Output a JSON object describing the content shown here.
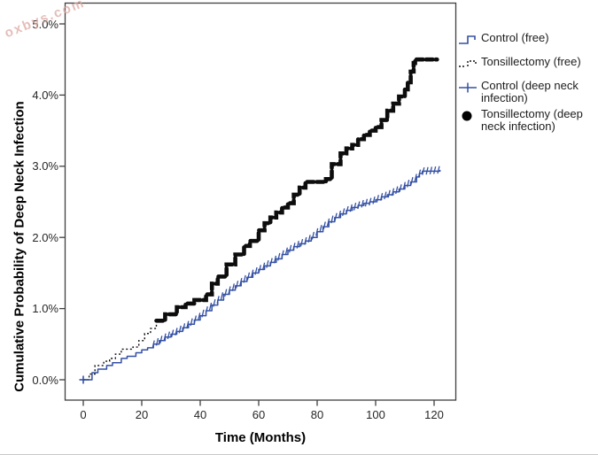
{
  "watermark": {
    "text": "oxbys.com",
    "color": "#dca9a2"
  },
  "legend": {
    "items": [
      {
        "label": "Control (free)",
        "symbol": "blue-step-line"
      },
      {
        "label": "Tonsillectomy (free)",
        "symbol": "black-dotted-line"
      },
      {
        "label": "Control (deep neck infection)",
        "symbol": "blue-plus-line"
      },
      {
        "label": "Tonsillectomy (deep neck infection)",
        "symbol": "black-filled-circle"
      }
    ]
  },
  "chart_data": {
    "type": "line",
    "title": "",
    "xlabel": "Time (Months)",
    "ylabel": "Cumulative Probability of Deep Neck Infection",
    "x_ticks": [
      0,
      20,
      40,
      60,
      80,
      100,
      120
    ],
    "y_tick_values": [
      0,
      1,
      2,
      3,
      4,
      5
    ],
    "y_tick_labels": [
      "0.0%",
      "1.0%",
      "2.0%",
      "3.0%",
      "4.0%",
      "5.0%"
    ],
    "xlim": [
      -6,
      127
    ],
    "ylim": [
      0,
      5.3
    ],
    "grid": false,
    "legend_position": "right",
    "series": [
      {
        "name": "Tonsillectomy",
        "color": "#0d0d0d",
        "line_style": "dotted-then-thick-dashed",
        "style_change_month": 25,
        "points": [
          [
            0,
            0.0
          ],
          [
            2,
            0.08
          ],
          [
            4,
            0.2
          ],
          [
            7,
            0.26
          ],
          [
            9,
            0.3
          ],
          [
            11,
            0.36
          ],
          [
            13,
            0.43
          ],
          [
            17,
            0.46
          ],
          [
            19,
            0.55
          ],
          [
            21,
            0.65
          ],
          [
            23,
            0.72
          ],
          [
            25,
            0.83
          ],
          [
            28,
            0.92
          ],
          [
            32,
            1.02
          ],
          [
            35,
            1.07
          ],
          [
            38,
            1.12
          ],
          [
            42,
            1.2
          ],
          [
            44,
            1.35
          ],
          [
            46,
            1.45
          ],
          [
            49,
            1.62
          ],
          [
            52,
            1.76
          ],
          [
            55,
            1.88
          ],
          [
            57,
            1.95
          ],
          [
            60,
            2.1
          ],
          [
            62,
            2.2
          ],
          [
            64,
            2.28
          ],
          [
            66,
            2.35
          ],
          [
            68,
            2.42
          ],
          [
            70,
            2.48
          ],
          [
            72,
            2.6
          ],
          [
            74,
            2.7
          ],
          [
            76,
            2.78
          ],
          [
            83,
            2.82
          ],
          [
            85,
            3.03
          ],
          [
            88,
            3.18
          ],
          [
            90,
            3.25
          ],
          [
            92,
            3.3
          ],
          [
            94,
            3.38
          ],
          [
            96,
            3.44
          ],
          [
            98,
            3.5
          ],
          [
            100,
            3.55
          ],
          [
            102,
            3.65
          ],
          [
            104,
            3.78
          ],
          [
            106,
            3.88
          ],
          [
            108,
            3.98
          ],
          [
            110,
            4.08
          ],
          [
            111,
            4.18
          ],
          [
            112,
            4.33
          ],
          [
            113,
            4.45
          ],
          [
            113.5,
            4.5
          ],
          [
            121,
            4.5
          ]
        ]
      },
      {
        "name": "Control",
        "color": "#3450a3",
        "line_style": "solid-with-plus-markers",
        "marker_start_month": 24,
        "marker_end_month": 121.5,
        "points": [
          [
            0,
            0.0
          ],
          [
            3,
            0.1
          ],
          [
            5,
            0.15
          ],
          [
            8,
            0.2
          ],
          [
            10,
            0.24
          ],
          [
            13,
            0.3
          ],
          [
            15,
            0.33
          ],
          [
            18,
            0.38
          ],
          [
            20,
            0.42
          ],
          [
            22,
            0.45
          ],
          [
            24,
            0.5
          ],
          [
            26,
            0.55
          ],
          [
            28,
            0.6
          ],
          [
            30,
            0.64
          ],
          [
            32,
            0.68
          ],
          [
            34,
            0.73
          ],
          [
            36,
            0.78
          ],
          [
            38,
            0.84
          ],
          [
            40,
            0.9
          ],
          [
            42,
            0.97
          ],
          [
            44,
            1.05
          ],
          [
            46,
            1.12
          ],
          [
            48,
            1.2
          ],
          [
            50,
            1.26
          ],
          [
            52,
            1.32
          ],
          [
            54,
            1.38
          ],
          [
            56,
            1.44
          ],
          [
            58,
            1.5
          ],
          [
            60,
            1.55
          ],
          [
            62,
            1.6
          ],
          [
            64,
            1.65
          ],
          [
            66,
            1.7
          ],
          [
            68,
            1.76
          ],
          [
            70,
            1.82
          ],
          [
            72,
            1.87
          ],
          [
            74,
            1.91
          ],
          [
            76,
            1.95
          ],
          [
            78,
            2.0
          ],
          [
            80,
            2.08
          ],
          [
            82,
            2.15
          ],
          [
            84,
            2.22
          ],
          [
            86,
            2.28
          ],
          [
            88,
            2.33
          ],
          [
            90,
            2.38
          ],
          [
            92,
            2.42
          ],
          [
            94,
            2.45
          ],
          [
            96,
            2.48
          ],
          [
            98,
            2.5
          ],
          [
            100,
            2.53
          ],
          [
            102,
            2.57
          ],
          [
            104,
            2.6
          ],
          [
            106,
            2.64
          ],
          [
            108,
            2.68
          ],
          [
            110,
            2.73
          ],
          [
            112,
            2.78
          ],
          [
            114,
            2.85
          ],
          [
            115,
            2.9
          ],
          [
            116,
            2.93
          ],
          [
            122,
            2.95
          ]
        ]
      }
    ]
  }
}
